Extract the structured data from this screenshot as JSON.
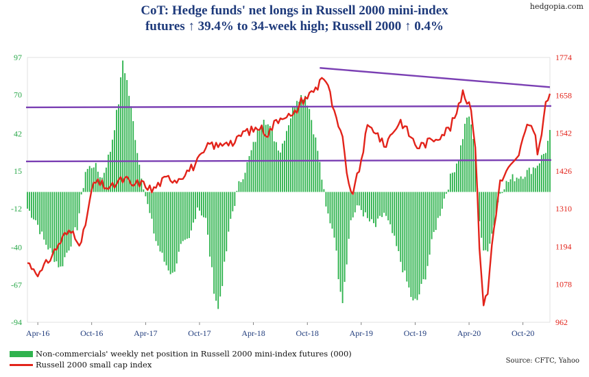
{
  "brand": "hedgopia.com",
  "title_line1": "CoT: Hedge funds' net longs in Russell 2000 mini-index",
  "title_line2": "futures ↑ 39.4% to 34-week high; Russell 2000 ↑ 0.4%",
  "source": "Source: CFTC, Yahoo",
  "colors": {
    "bars": "#2fb34e",
    "line": "#e2231a",
    "trend": "#7a3fb3",
    "left_axis": "#2aa84a",
    "right_axis": "#e2231a"
  },
  "chart_data": {
    "type": "bar+line",
    "x_tick_labels": [
      "Apr-16",
      "Oct-16",
      "Apr-17",
      "Oct-17",
      "Apr-18",
      "Oct-18",
      "Apr-19",
      "Oct-19",
      "Apr-20",
      "Oct-20"
    ],
    "left_axis": {
      "ticks": [
        "97",
        "70",
        "42",
        "15",
        "-12",
        "-40",
        "-67",
        "-94"
      ],
      "range": [
        -94,
        97
      ]
    },
    "right_axis": {
      "ticks": [
        "1774",
        "1658",
        "1542",
        "1426",
        "1310",
        "1194",
        "1078",
        "962"
      ],
      "range": [
        962,
        1774
      ]
    },
    "series": [
      {
        "name": "Non-commercials' weekly net position in Russell 2000 mini-index futures (000)",
        "kind": "bar",
        "anchors": [
          [
            0,
            -12
          ],
          [
            4,
            -20
          ],
          [
            8,
            -35
          ],
          [
            12,
            -45
          ],
          [
            16,
            -55
          ],
          [
            20,
            -40
          ],
          [
            24,
            -25
          ],
          [
            26,
            -5
          ],
          [
            28,
            15
          ],
          [
            32,
            20
          ],
          [
            36,
            10
          ],
          [
            40,
            30
          ],
          [
            44,
            65
          ],
          [
            46,
            95
          ],
          [
            48,
            80
          ],
          [
            50,
            60
          ],
          [
            54,
            20
          ],
          [
            58,
            -10
          ],
          [
            62,
            -35
          ],
          [
            66,
            -50
          ],
          [
            70,
            -60
          ],
          [
            74,
            -40
          ],
          [
            78,
            -35
          ],
          [
            82,
            -10
          ],
          [
            86,
            -20
          ],
          [
            88,
            -45
          ],
          [
            90,
            -70
          ],
          [
            92,
            -85
          ],
          [
            94,
            -65
          ],
          [
            98,
            -20
          ],
          [
            102,
            5
          ],
          [
            106,
            20
          ],
          [
            110,
            38
          ],
          [
            114,
            55
          ],
          [
            118,
            42
          ],
          [
            122,
            30
          ],
          [
            126,
            50
          ],
          [
            130,
            68
          ],
          [
            134,
            70
          ],
          [
            136,
            60
          ],
          [
            140,
            30
          ],
          [
            142,
            10
          ],
          [
            144,
            -12
          ],
          [
            148,
            -30
          ],
          [
            150,
            -60
          ],
          [
            152,
            -78
          ],
          [
            156,
            -20
          ],
          [
            160,
            -10
          ],
          [
            164,
            -20
          ],
          [
            168,
            -25
          ],
          [
            172,
            -15
          ],
          [
            176,
            -30
          ],
          [
            180,
            -50
          ],
          [
            184,
            -70
          ],
          [
            186,
            -80
          ],
          [
            188,
            -78
          ],
          [
            192,
            -60
          ],
          [
            196,
            -30
          ],
          [
            200,
            -10
          ],
          [
            204,
            10
          ],
          [
            208,
            25
          ],
          [
            212,
            55
          ],
          [
            214,
            48
          ],
          [
            216,
            30
          ],
          [
            218,
            -20
          ],
          [
            220,
            -45
          ],
          [
            222,
            -40
          ],
          [
            224,
            -30
          ],
          [
            226,
            -15
          ],
          [
            228,
            0
          ],
          [
            230,
            5
          ],
          [
            234,
            10
          ],
          [
            238,
            12
          ],
          [
            242,
            15
          ],
          [
            246,
            20
          ],
          [
            248,
            25
          ],
          [
            250,
            30
          ],
          [
            252,
            42
          ]
        ]
      },
      {
        "name": "Russell 2000 small cap index",
        "kind": "line",
        "anchors": [
          [
            0,
            1145
          ],
          [
            6,
            1110
          ],
          [
            10,
            1150
          ],
          [
            14,
            1190
          ],
          [
            18,
            1230
          ],
          [
            22,
            1240
          ],
          [
            26,
            1200
          ],
          [
            30,
            1330
          ],
          [
            32,
            1390
          ],
          [
            36,
            1385
          ],
          [
            40,
            1370
          ],
          [
            44,
            1395
          ],
          [
            48,
            1400
          ],
          [
            50,
            1380
          ],
          [
            54,
            1390
          ],
          [
            58,
            1380
          ],
          [
            60,
            1365
          ],
          [
            64,
            1390
          ],
          [
            68,
            1405
          ],
          [
            72,
            1400
          ],
          [
            76,
            1420
          ],
          [
            80,
            1440
          ],
          [
            84,
            1470
          ],
          [
            88,
            1510
          ],
          [
            92,
            1500
          ],
          [
            96,
            1520
          ],
          [
            100,
            1510
          ],
          [
            104,
            1545
          ],
          [
            108,
            1550
          ],
          [
            112,
            1560
          ],
          [
            116,
            1540
          ],
          [
            120,
            1580
          ],
          [
            124,
            1600
          ],
          [
            128,
            1590
          ],
          [
            132,
            1640
          ],
          [
            136,
            1660
          ],
          [
            140,
            1685
          ],
          [
            142,
            1720
          ],
          [
            144,
            1700
          ],
          [
            146,
            1660
          ],
          [
            148,
            1600
          ],
          [
            150,
            1560
          ],
          [
            152,
            1520
          ],
          [
            154,
            1430
          ],
          [
            156,
            1350
          ],
          [
            158,
            1380
          ],
          [
            160,
            1430
          ],
          [
            164,
            1560
          ],
          [
            168,
            1550
          ],
          [
            172,
            1500
          ],
          [
            176,
            1545
          ],
          [
            180,
            1580
          ],
          [
            184,
            1540
          ],
          [
            188,
            1500
          ],
          [
            192,
            1510
          ],
          [
            196,
            1525
          ],
          [
            200,
            1540
          ],
          [
            204,
            1560
          ],
          [
            208,
            1620
          ],
          [
            210,
            1675
          ],
          [
            212,
            1640
          ],
          [
            214,
            1625
          ],
          [
            216,
            1500
          ],
          [
            218,
            1200
          ],
          [
            220,
            1020
          ],
          [
            222,
            1050
          ],
          [
            224,
            1200
          ],
          [
            226,
            1300
          ],
          [
            228,
            1390
          ],
          [
            232,
            1430
          ],
          [
            236,
            1460
          ],
          [
            240,
            1540
          ],
          [
            242,
            1570
          ],
          [
            244,
            1560
          ],
          [
            246,
            1490
          ],
          [
            248,
            1530
          ],
          [
            250,
            1640
          ],
          [
            252,
            1650
          ]
        ]
      }
    ],
    "annotations": "horizontal resistance near 61 and 22 (left scale); downtrend line connecting Aug-2018 and Jan-2020 highs",
    "legend_position": "bottom-left",
    "grid": false
  }
}
